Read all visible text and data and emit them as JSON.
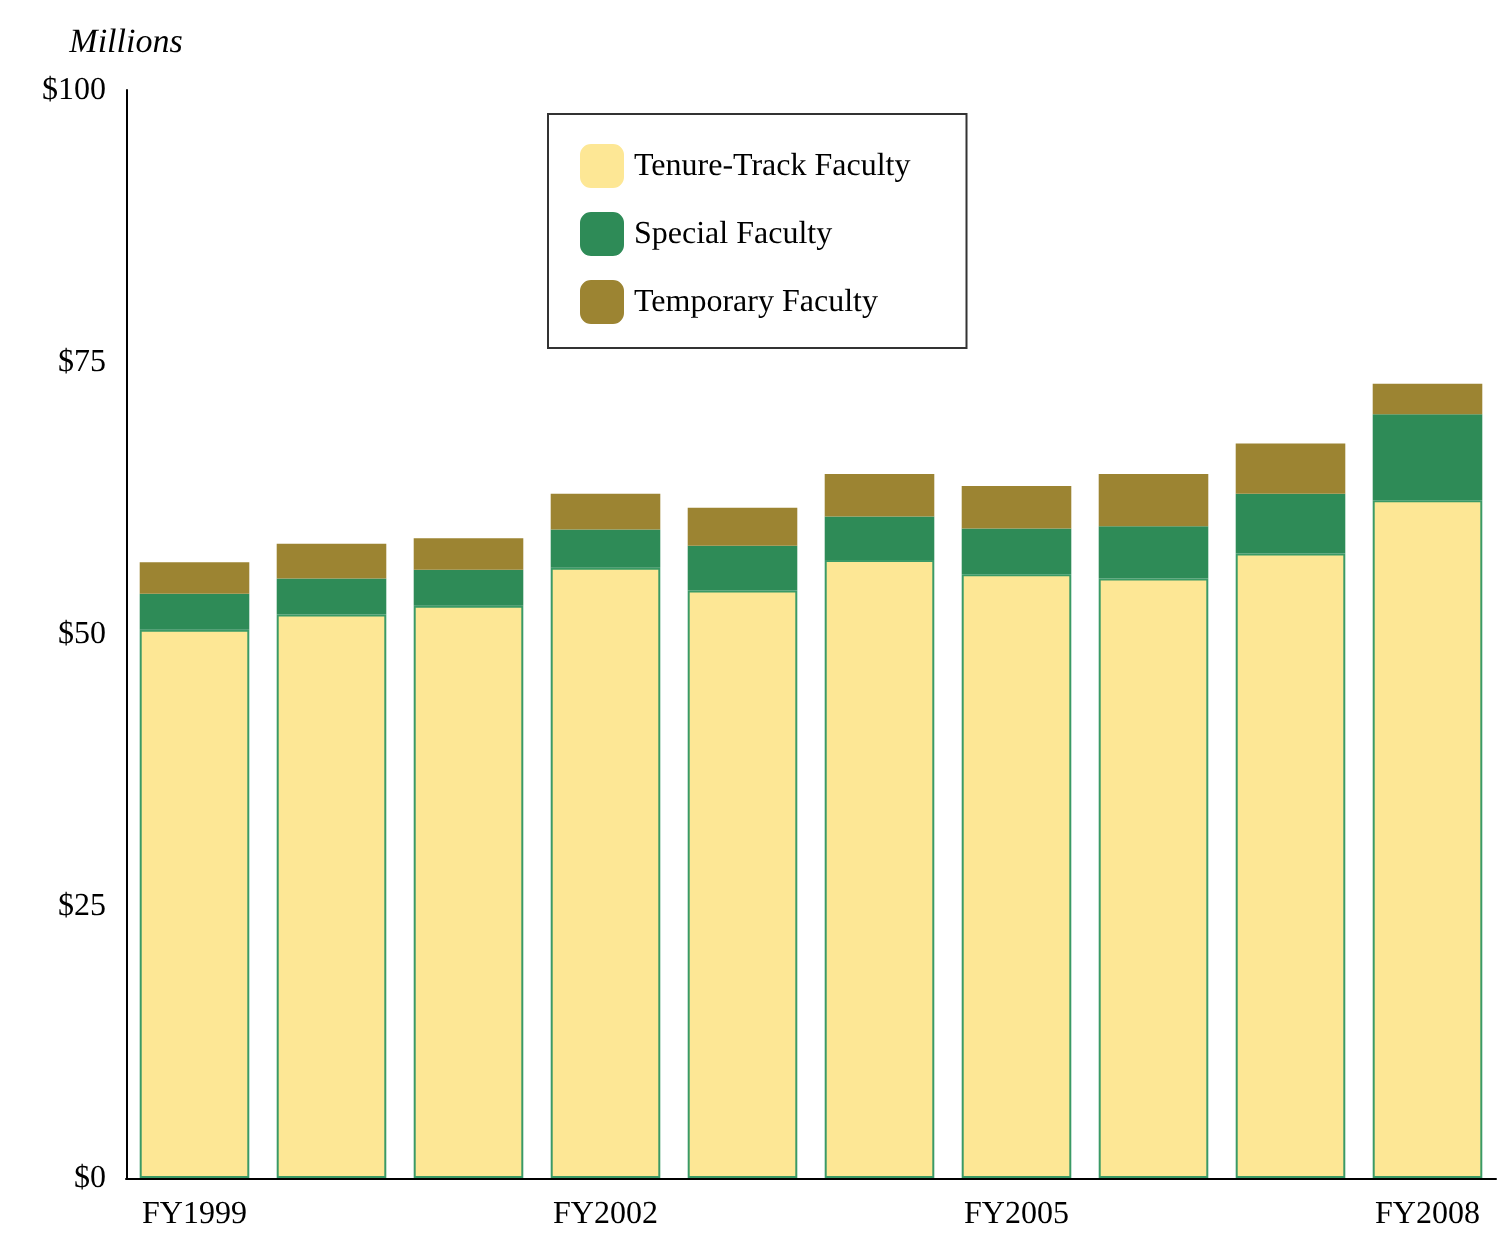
{
  "chart_data": {
    "type": "bar",
    "ylabel": "Millions",
    "stacked": true,
    "legend": "top",
    "categories": [
      "FY1999",
      null,
      null,
      "FY2002",
      null,
      null,
      "FY2005",
      null,
      null,
      "FY2008"
    ],
    "series": [
      {
        "name": "Tenure-Track Faculty",
        "color": "#fde795",
        "values": [
          50.4,
          51.8,
          52.6,
          56.1,
          54.0,
          56.8,
          55.5,
          55.1,
          57.4,
          62.3
        ]
      },
      {
        "name": "Special Faculty",
        "color": "#2e8b57",
        "values": [
          3.3,
          3.3,
          3.3,
          3.5,
          4.1,
          4.0,
          4.2,
          4.8,
          5.5,
          7.9
        ]
      },
      {
        "name": "Temporary Faculty",
        "color": "#9c8432",
        "values": [
          2.9,
          3.2,
          2.9,
          3.3,
          3.5,
          3.9,
          3.9,
          4.8,
          4.6,
          2.8
        ]
      }
    ],
    "ylim": [
      0,
      100
    ],
    "yticks": [
      {
        "value": 0,
        "label": "$0"
      },
      {
        "value": 25,
        "label": "$25"
      },
      {
        "value": 50,
        "label": "$50"
      },
      {
        "value": 75,
        "label": "$75"
      },
      {
        "value": 100,
        "label": "$100"
      }
    ]
  }
}
